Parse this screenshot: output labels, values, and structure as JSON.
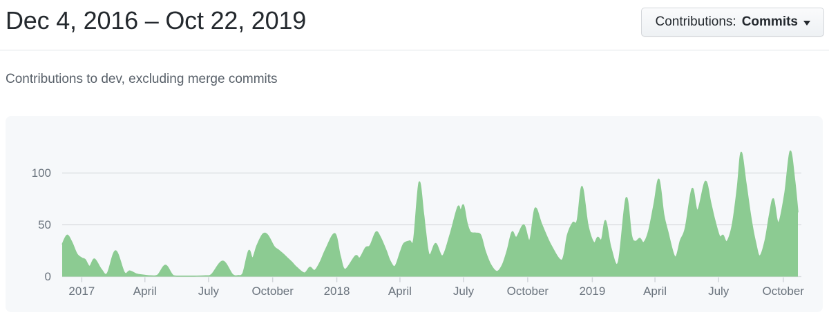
{
  "header": {
    "title": "Dec 4, 2016 – Oct 22, 2019",
    "filter_button": {
      "prefix": "Contributions:",
      "selected": "Commits"
    }
  },
  "subtitle": "Contributions to dev, excluding merge commits",
  "colors": {
    "area_green": "#8ccb92",
    "card_bg": "#f6f8fa",
    "grid": "#d8dbde",
    "tick": "#d1d5da",
    "axis_text": "#6a737d",
    "title_text": "#24292e",
    "subtitle_text": "#586069",
    "divider": "#e1e4e8",
    "button_text": "#24292e",
    "button_border": "#d3d6da"
  },
  "chart_data": {
    "type": "area",
    "title": "Contributions to dev, excluding merge commits",
    "series_name": "Commits",
    "x_unit": "weeks since Dec 4, 2016",
    "x_range_weeks": [
      0,
      150.3
    ],
    "ylim": [
      0,
      133
    ],
    "y_ticks": [
      0,
      50,
      100
    ],
    "grid": "horizontal",
    "legend": "none",
    "x_ticks": [
      {
        "label": "2017",
        "week": 4.0
      },
      {
        "label": "April",
        "week": 16.9
      },
      {
        "label": "July",
        "week": 29.9
      },
      {
        "label": "October",
        "week": 43.0
      },
      {
        "label": "2018",
        "week": 56.1
      },
      {
        "label": "April",
        "week": 69.0
      },
      {
        "label": "July",
        "week": 82.0
      },
      {
        "label": "October",
        "week": 95.1
      },
      {
        "label": "2019",
        "week": 108.3
      },
      {
        "label": "April",
        "week": 121.1
      },
      {
        "label": "July",
        "week": 134.1
      },
      {
        "label": "October",
        "week": 147.3
      }
    ],
    "points": [
      [
        0,
        31
      ],
      [
        1,
        40
      ],
      [
        2,
        33
      ],
      [
        3,
        22
      ],
      [
        4,
        18
      ],
      [
        4.7,
        16.5
      ],
      [
        5.6,
        10
      ],
      [
        6.6,
        17
      ],
      [
        8,
        7
      ],
      [
        9.2,
        3
      ],
      [
        10.9,
        25
      ],
      [
        12.7,
        4
      ],
      [
        13.8,
        5.5
      ],
      [
        15.2,
        2.5
      ],
      [
        16.6,
        1.5
      ],
      [
        18,
        0.8
      ],
      [
        19.5,
        1.5
      ],
      [
        21.1,
        11
      ],
      [
        22.7,
        1
      ],
      [
        24.5,
        0.5
      ],
      [
        27,
        0.5
      ],
      [
        29.3,
        0.8
      ],
      [
        30.5,
        2
      ],
      [
        32.8,
        15
      ],
      [
        34.8,
        2
      ],
      [
        35.9,
        1
      ],
      [
        36.9,
        3
      ],
      [
        38.1,
        25
      ],
      [
        38.9,
        18
      ],
      [
        39.8,
        30
      ],
      [
        41,
        41
      ],
      [
        42,
        40
      ],
      [
        43.3,
        29
      ],
      [
        44.1,
        26
      ],
      [
        45.1,
        22
      ],
      [
        46,
        18
      ],
      [
        46.9,
        14
      ],
      [
        47.9,
        9
      ],
      [
        49.5,
        3.5
      ],
      [
        50.6,
        9
      ],
      [
        51.6,
        6
      ],
      [
        52.7,
        14
      ],
      [
        53.8,
        26
      ],
      [
        55.7,
        41.5
      ],
      [
        56.8,
        20
      ],
      [
        57.8,
        7
      ],
      [
        59.9,
        20
      ],
      [
        60.8,
        18
      ],
      [
        62,
        28
      ],
      [
        62.9,
        30
      ],
      [
        64.1,
        43
      ],
      [
        65,
        38
      ],
      [
        66.2,
        25
      ],
      [
        67,
        15
      ],
      [
        68,
        10
      ],
      [
        69.1,
        24
      ],
      [
        69.8,
        32
      ],
      [
        71,
        34.5
      ],
      [
        71.8,
        36
      ],
      [
        72.9,
        91
      ],
      [
        73.8,
        62
      ],
      [
        74.2,
        45
      ],
      [
        75,
        21
      ],
      [
        76.3,
        32
      ],
      [
        77.7,
        20
      ],
      [
        79.2,
        40
      ],
      [
        80.8,
        67
      ],
      [
        81.4,
        64
      ],
      [
        82,
        69
      ],
      [
        82.7,
        52
      ],
      [
        83.4,
        43
      ],
      [
        84.5,
        42
      ],
      [
        85.5,
        40
      ],
      [
        86.4,
        25
      ],
      [
        87.5,
        12
      ],
      [
        88.8,
        5
      ],
      [
        89.9,
        11
      ],
      [
        90.9,
        25
      ],
      [
        91.9,
        43
      ],
      [
        92.8,
        38
      ],
      [
        94.3,
        50
      ],
      [
        95.5,
        35
      ],
      [
        96.6,
        66
      ],
      [
        98,
        50
      ],
      [
        99.9,
        30
      ],
      [
        102.1,
        16
      ],
      [
        103.2,
        40
      ],
      [
        104.3,
        52
      ],
      [
        105.2,
        54
      ],
      [
        106.2,
        87
      ],
      [
        107.4,
        50
      ],
      [
        108.6,
        33
      ],
      [
        109.4,
        38
      ],
      [
        110.2,
        36
      ],
      [
        111,
        54
      ],
      [
        112.1,
        28
      ],
      [
        113.6,
        14
      ],
      [
        115.2,
        76
      ],
      [
        116.3,
        40
      ],
      [
        117.1,
        34
      ],
      [
        118,
        37
      ],
      [
        118.8,
        33
      ],
      [
        119.8,
        44
      ],
      [
        120.9,
        70
      ],
      [
        121.9,
        94
      ],
      [
        122.9,
        60
      ],
      [
        123.7,
        44
      ],
      [
        125.2,
        19
      ],
      [
        126.3,
        35
      ],
      [
        127.3,
        47
      ],
      [
        128.7,
        85
      ],
      [
        129.8,
        64
      ],
      [
        131.4,
        92
      ],
      [
        132.5,
        71
      ],
      [
        133.3,
        55
      ],
      [
        134.3,
        39
      ],
      [
        135,
        40
      ],
      [
        135.8,
        34
      ],
      [
        136.9,
        50
      ],
      [
        137.9,
        85
      ],
      [
        138.7,
        120
      ],
      [
        139.7,
        90
      ],
      [
        140.7,
        57
      ],
      [
        141.7,
        32
      ],
      [
        142.5,
        20
      ],
      [
        143.6,
        35
      ],
      [
        144.5,
        60
      ],
      [
        145.3,
        75
      ],
      [
        146.3,
        52
      ],
      [
        147.6,
        80
      ],
      [
        148.7,
        121
      ],
      [
        149.6,
        95
      ],
      [
        150.3,
        62
      ]
    ]
  }
}
